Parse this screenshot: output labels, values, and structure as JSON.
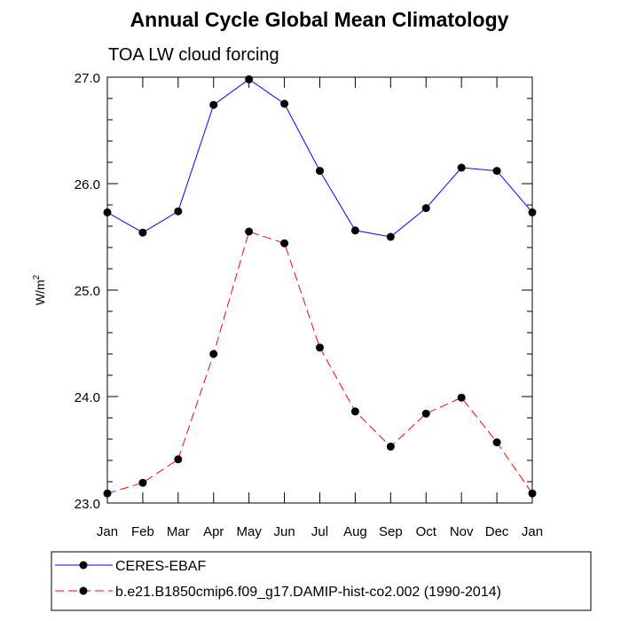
{
  "chart_data": {
    "type": "line",
    "title": "Annual Cycle Global Mean Climatology",
    "subtitle": "TOA LW cloud forcing",
    "ylabel": "W/m",
    "ylabel_sup": "2",
    "xlabel": "",
    "categories": [
      "Jan",
      "Feb",
      "Mar",
      "Apr",
      "May",
      "Jun",
      "Jul",
      "Aug",
      "Sep",
      "Oct",
      "Nov",
      "Dec",
      "Jan"
    ],
    "ylim": [
      23.0,
      27.0
    ],
    "yticks": [
      "23.0",
      "24.0",
      "25.0",
      "26.0",
      "27.0"
    ],
    "grid": false,
    "legend_position": "bottom",
    "series": [
      {
        "name": "CERES-EBAF",
        "color": "#0000ff",
        "dash": "solid",
        "values": [
          25.73,
          25.54,
          25.74,
          26.74,
          26.98,
          26.75,
          26.12,
          25.56,
          25.5,
          25.77,
          26.15,
          26.12,
          25.73
        ]
      },
      {
        "name": "b.e21.B1850cmip6.f09_g17.DAMIP-hist-co2.002 (1990-2014)",
        "color": "#ff0000",
        "dash": "dashed",
        "values": [
          23.09,
          23.19,
          23.41,
          24.4,
          25.55,
          25.44,
          24.46,
          23.86,
          23.53,
          23.84,
          23.99,
          23.57,
          23.09
        ]
      }
    ]
  }
}
